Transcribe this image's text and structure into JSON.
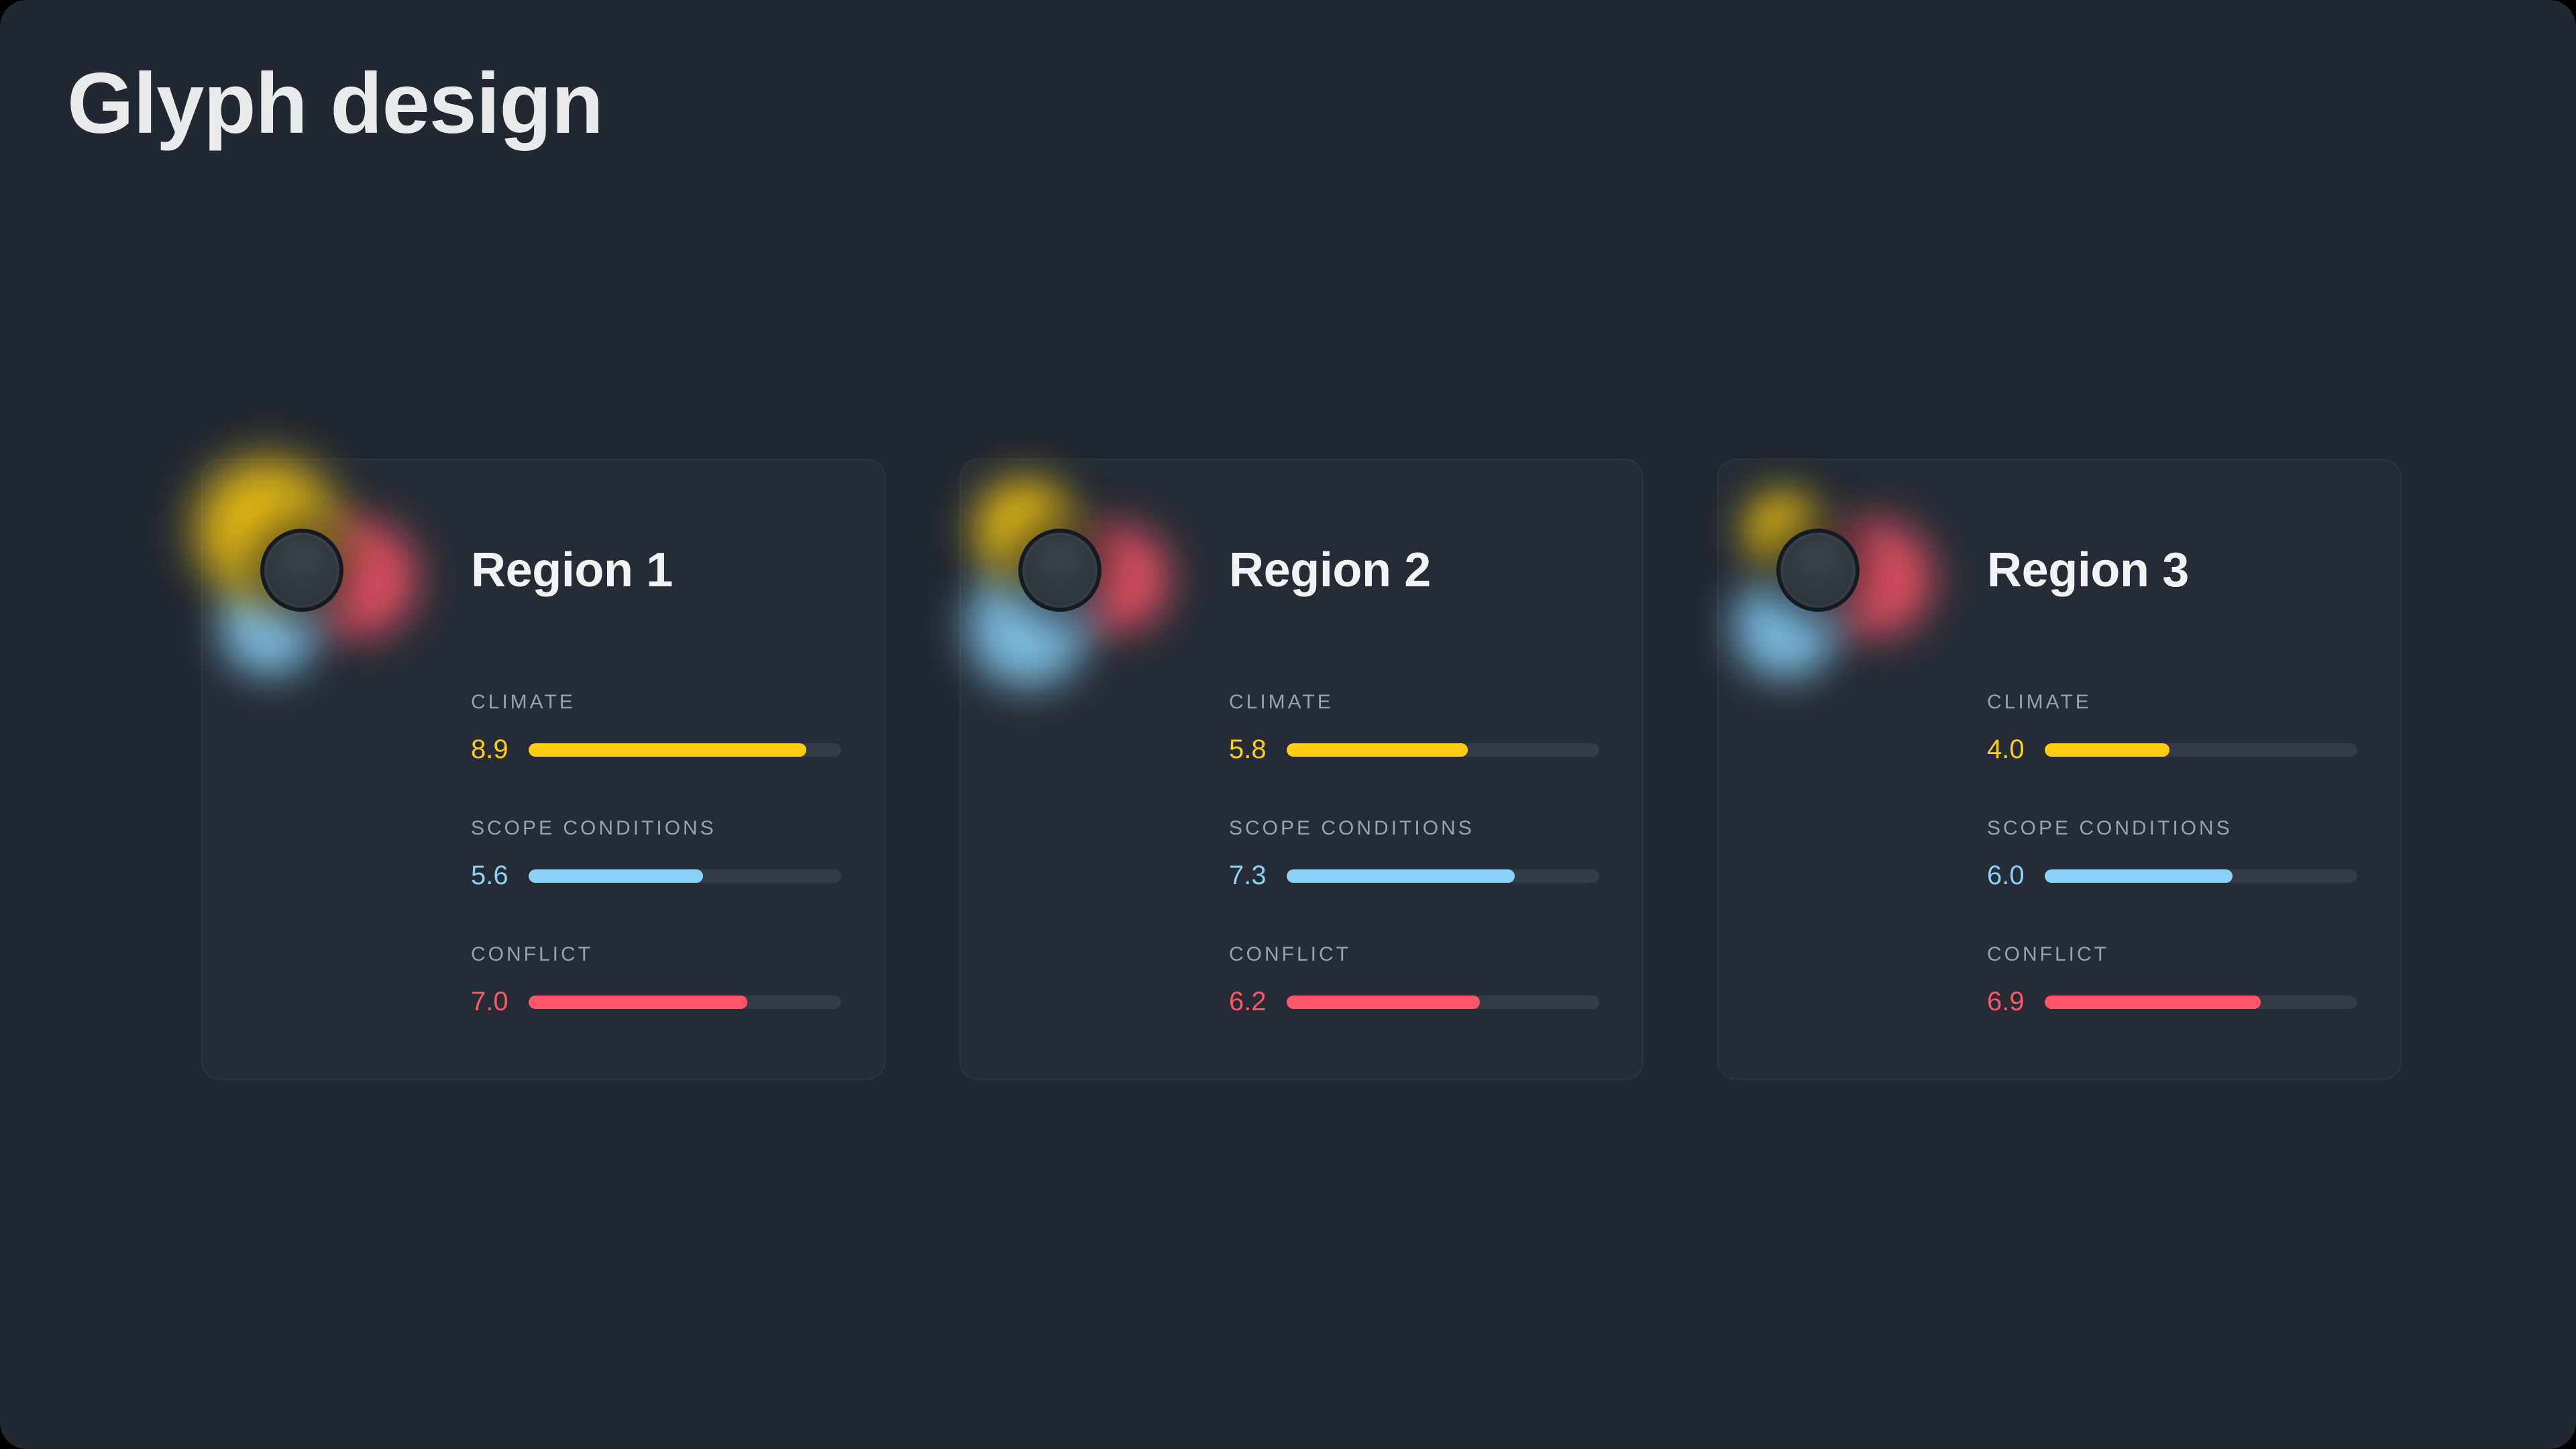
{
  "page": {
    "title": "Glyph design"
  },
  "theme": {
    "page_bg": "#222831",
    "card_bg": "#252c35",
    "card_border": "rgba(255,255,255,0.04)",
    "track": "#323b46",
    "label_color": "#99a1ac",
    "title_color": "#e8eaec",
    "region_title_color": "#f2f3f4",
    "climate": "#ffcd12",
    "scope": "#8ad2fa",
    "conflict": "#fc5668"
  },
  "scale_max": 10,
  "cards": [
    {
      "title": "Region 1",
      "metrics": [
        {
          "key": "climate",
          "label": "CLIMATE",
          "value": "8.9"
        },
        {
          "key": "scope",
          "label": "SCOPE CONDITIONS",
          "value": "5.6"
        },
        {
          "key": "conflict",
          "label": "CONFLICT",
          "value": "7.0"
        }
      ]
    },
    {
      "title": "Region 2",
      "metrics": [
        {
          "key": "climate",
          "label": "CLIMATE",
          "value": "5.8"
        },
        {
          "key": "scope",
          "label": "SCOPE CONDITIONS",
          "value": "7.3"
        },
        {
          "key": "conflict",
          "label": "CONFLICT",
          "value": "6.2"
        }
      ]
    },
    {
      "title": "Region 3",
      "metrics": [
        {
          "key": "climate",
          "label": "CLIMATE",
          "value": "4.0"
        },
        {
          "key": "scope",
          "label": "SCOPE CONDITIONS",
          "value": "6.0"
        },
        {
          "key": "conflict",
          "label": "CONFLICT",
          "value": "6.9"
        }
      ]
    }
  ],
  "chart_data": {
    "type": "bar",
    "title": "Glyph design",
    "categories": [
      "CLIMATE",
      "SCOPE CONDITIONS",
      "CONFLICT"
    ],
    "series": [
      {
        "name": "Region 1",
        "values": [
          8.9,
          5.6,
          7.0
        ]
      },
      {
        "name": "Region 2",
        "values": [
          5.8,
          7.3,
          6.2
        ]
      },
      {
        "name": "Region 3",
        "values": [
          4.0,
          6.0,
          6.9
        ]
      }
    ],
    "value_range": [
      0,
      10
    ],
    "colors": {
      "CLIMATE": "#ffcd12",
      "SCOPE CONDITIONS": "#8ad2fa",
      "CONFLICT": "#fc5668"
    },
    "legend_position": "none",
    "grid": false,
    "layout": "three glyph cards, each with a glow-ring glyph and three horizontal progress bars scaled to value/10"
  }
}
